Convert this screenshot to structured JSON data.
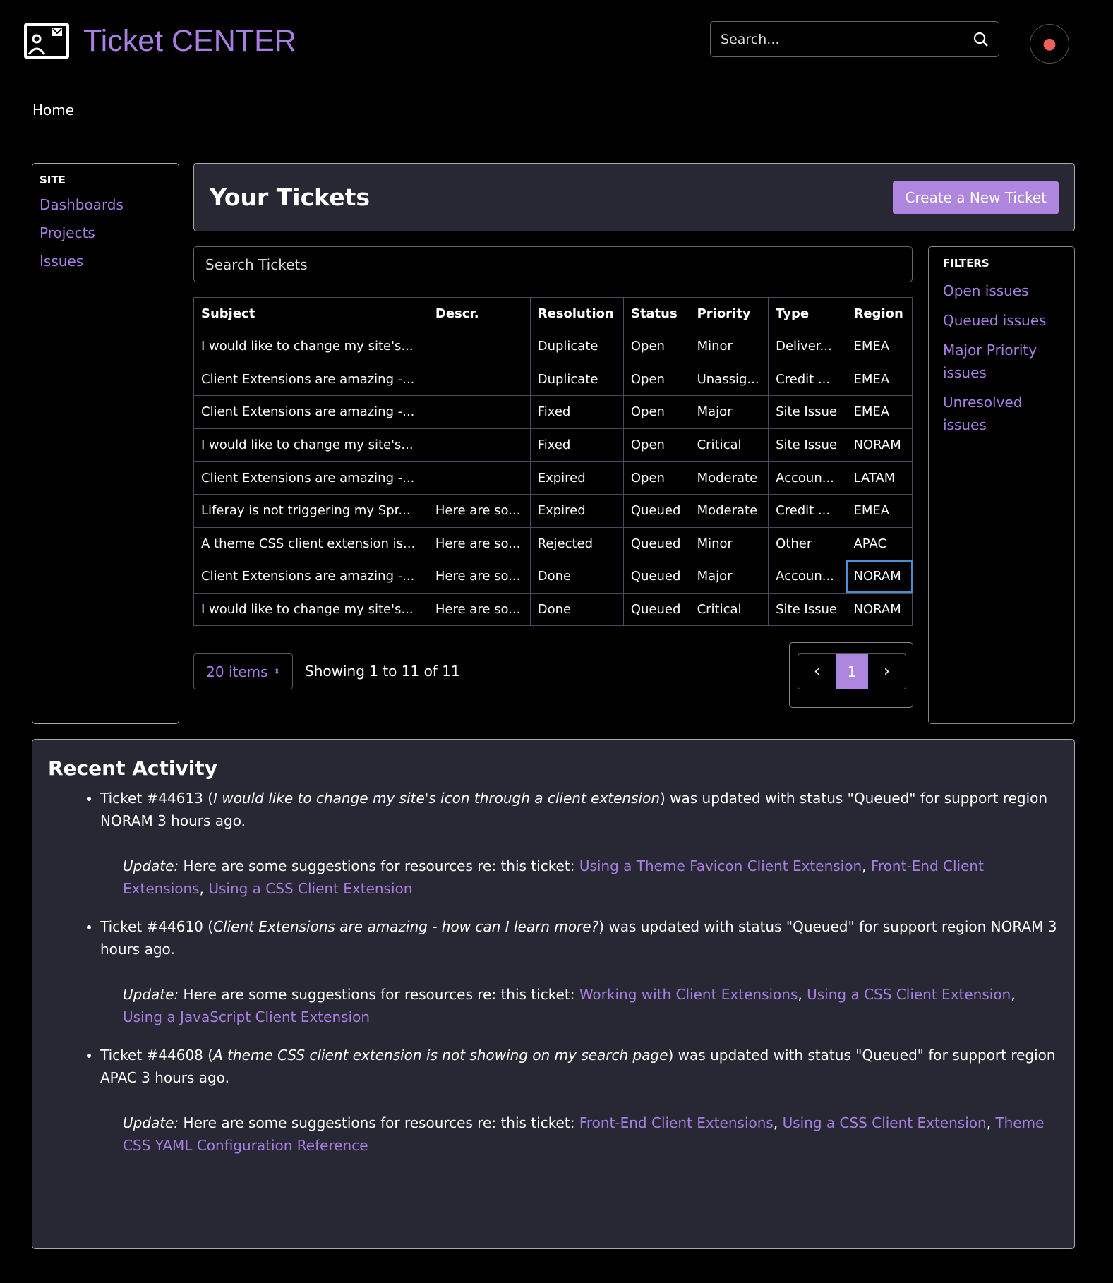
{
  "app": {
    "title": "Ticket CENTER",
    "search_placeholder": "Search...",
    "breadcrumb": "Home"
  },
  "sidebar": {
    "caption": "SITE",
    "items": [
      {
        "label": "Dashboards"
      },
      {
        "label": "Projects"
      },
      {
        "label": "Issues"
      }
    ]
  },
  "main": {
    "heading": "Your Tickets",
    "create_label": "Create a New Ticket",
    "search_placeholder": "Search Tickets"
  },
  "filters": {
    "caption": "FILTERS",
    "items": [
      {
        "label": "Open issues"
      },
      {
        "label": "Queued issues"
      },
      {
        "label": "Major Priority issues"
      },
      {
        "label": "Unresolved issues"
      }
    ]
  },
  "table": {
    "columns": [
      "Subject",
      "Descr.",
      "Resolution",
      "Status",
      "Priority",
      "Type",
      "Region"
    ],
    "rows": [
      [
        "I would like to change my site's...",
        "",
        "Duplicate",
        "Open",
        "Minor",
        "Deliver...",
        "EMEA"
      ],
      [
        "Client Extensions are amazing -...",
        "",
        "Duplicate",
        "Open",
        "Unassig...",
        "Credit ...",
        "EMEA"
      ],
      [
        "Client Extensions are amazing -...",
        "",
        "Fixed",
        "Open",
        "Major",
        "Site Issue",
        "EMEA"
      ],
      [
        "I would like to change my site's...",
        "",
        "Fixed",
        "Open",
        "Critical",
        "Site Issue",
        "NORAM"
      ],
      [
        "Client Extensions are amazing -...",
        "",
        "Expired",
        "Open",
        "Moderate",
        "Accoun...",
        "LATAM"
      ],
      [
        "Liferay is not triggering my Spr...",
        "Here are so...",
        "Expired",
        "Queued",
        "Moderate",
        "Credit ...",
        "EMEA"
      ],
      [
        "A theme CSS client extension is...",
        "Here are so...",
        "Rejected",
        "Queued",
        "Minor",
        "Other",
        "APAC"
      ],
      [
        "Client Extensions are amazing -...",
        "Here are so...",
        "Done",
        "Queued",
        "Major",
        "Accoun...",
        "NORAM"
      ],
      [
        "I would like to change my site's...",
        "Here are so...",
        "Done",
        "Queued",
        "Critical",
        "Site Issue",
        "NORAM"
      ]
    ]
  },
  "pagination": {
    "per_page": "20 items",
    "showing": "Showing 1 to 11 of 11",
    "current_page": "1"
  },
  "recent": {
    "heading": "Recent Activity",
    "items": [
      {
        "pre": "Ticket #44613 (",
        "subject": "I would like to change my site's icon through a client extension",
        "post": ") was updated with status \"Queued\" for support region NORAM 3 hours ago.",
        "update_label": "Update:",
        "update_text": " Here are some suggestions for resources re: this ticket: ",
        "links": [
          "Using a Theme Favicon Client Extension",
          "Front-End Client Extensions",
          "Using a CSS Client Extension"
        ]
      },
      {
        "pre": "Ticket #44610 (",
        "subject": "Client Extensions are amazing - how can I learn more?",
        "post": ") was updated with status \"Queued\" for support region NORAM 3 hours ago.",
        "update_label": "Update:",
        "update_text": " Here are some suggestions for resources re: this ticket: ",
        "links": [
          "Working with Client Extensions",
          "Using a CSS Client Extension",
          "Using a JavaScript Client Extension"
        ]
      },
      {
        "pre": "Ticket #44608 (",
        "subject": "A theme CSS client extension is not showing on my search page",
        "post": ") was updated with status \"Queued\" for support region APAC 3 hours ago.",
        "update_label": "Update:",
        "update_text": " Here are some suggestions for resources re: this ticket: ",
        "links": [
          "Front-End Client Extensions",
          "Using a CSS Client Extension",
          "Theme CSS YAML Configuration Reference"
        ]
      }
    ]
  },
  "colors": {
    "accent": "#ae86e0",
    "link": "#a77fe0",
    "panel": "#282834",
    "avatar": "#f0605a"
  }
}
